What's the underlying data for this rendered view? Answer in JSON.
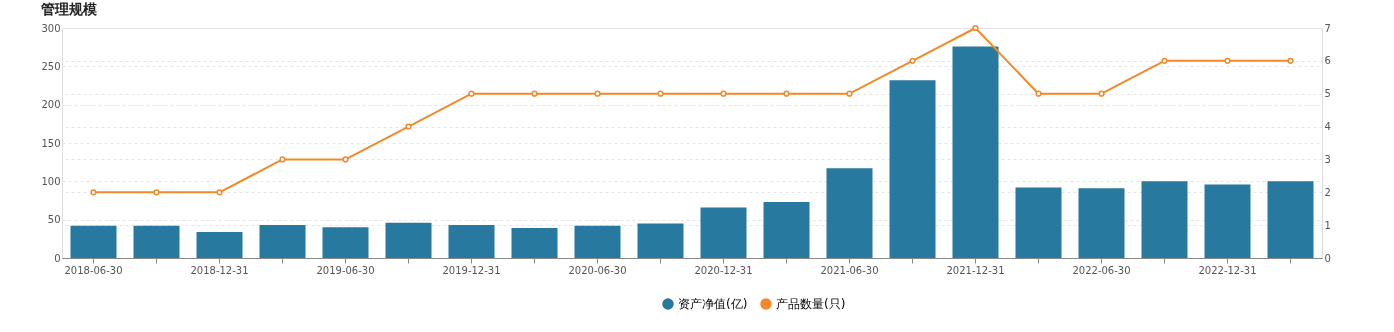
{
  "chart_data": {
    "type": "bar",
    "title": "管理规模",
    "categories": [
      "2018-06-30",
      null,
      "2018-12-31",
      null,
      "2019-06-30",
      null,
      "2019-12-31",
      null,
      "2020-06-30",
      null,
      "2020-12-31",
      null,
      "2021-06-30",
      null,
      "2021-12-31",
      null,
      "2022-06-30",
      null,
      "2022-12-31",
      null
    ],
    "series": [
      {
        "name": "资产净值(亿)",
        "color": "#27799f",
        "values": [
          42,
          42,
          34,
          43,
          40,
          46,
          43,
          39,
          42,
          45,
          66,
          73,
          117,
          232,
          276,
          92,
          91,
          100,
          96,
          100
        ]
      },
      {
        "name": "产品数量(只)",
        "type": "line",
        "axis": "y2",
        "color": "#f28a2b",
        "values": [
          2,
          2,
          2,
          3,
          3,
          4,
          5,
          5,
          5,
          5,
          5,
          5,
          5,
          6,
          7,
          5,
          5,
          6,
          6,
          6
        ]
      }
    ],
    "ylim": [
      0,
      300
    ],
    "yticks": [
      0,
      50,
      100,
      150,
      200,
      250,
      300
    ],
    "y2lim": [
      0,
      7
    ],
    "y2ticks": [
      0,
      1,
      2,
      3,
      4,
      5,
      6,
      7
    ],
    "grid": true,
    "legend": "bottom",
    "marker": "circle",
    "line_style": "solid"
  }
}
